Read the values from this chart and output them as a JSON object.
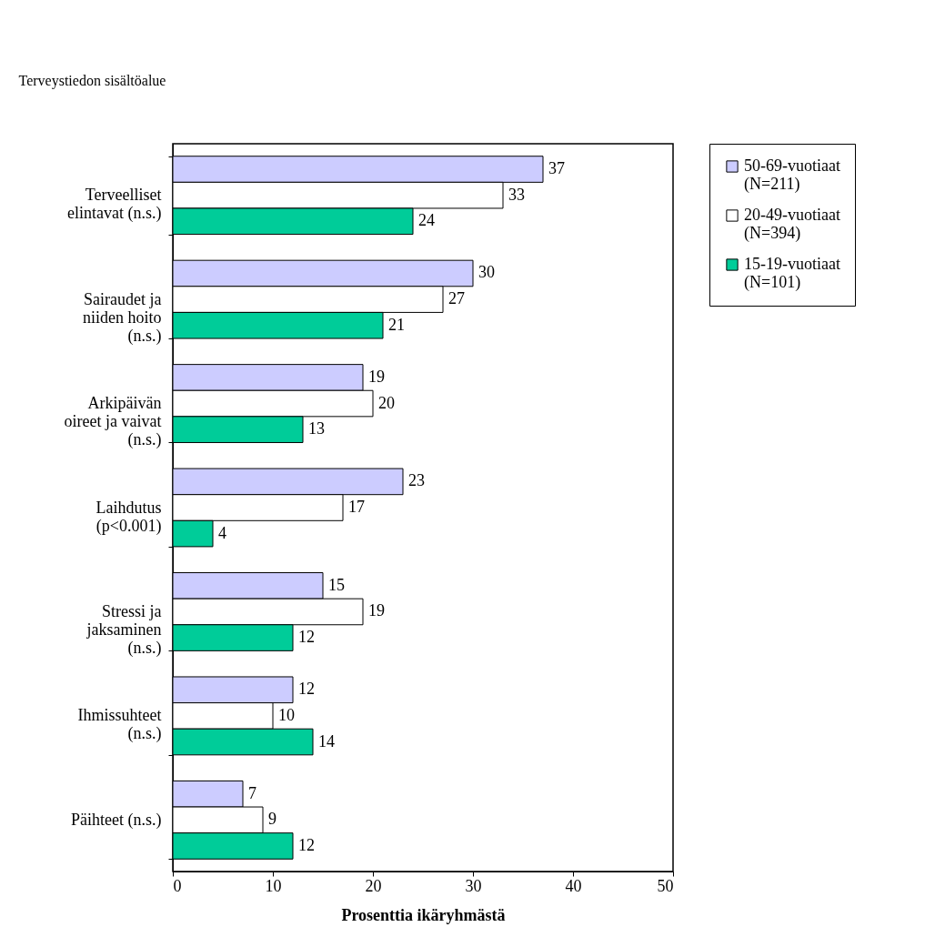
{
  "chart_data": {
    "type": "bar",
    "orientation": "horizontal",
    "ylabel": "Terveystiedon sisältöalue",
    "xlabel": "Prosenttia ikäryhmästä",
    "categories": [
      "Terveelliset elintavat (n.s.)",
      "Sairaudet ja niiden hoito (n.s.)",
      "Arkipäivän oireet ja vaivat (n.s.)",
      "Laihdutus (p<0.001)",
      "Stressi ja jaksaminen (n.s.)",
      "Ihmissuhteet (n.s.)",
      "Päihteet (n.s.)"
    ],
    "series": [
      {
        "name": "50-69-vuotiaat (N=211)",
        "color": "#ccccff",
        "values": [
          37,
          30,
          19,
          23,
          15,
          12,
          7
        ]
      },
      {
        "name": "20-49-vuotiaat (N=394)",
        "color": "#ffffff",
        "values": [
          33,
          27,
          20,
          17,
          19,
          10,
          9
        ]
      },
      {
        "name": "15-19-vuotiaat (N=101)",
        "color": "#00cc99",
        "values": [
          24,
          21,
          13,
          4,
          12,
          14,
          12
        ]
      }
    ],
    "xlim": [
      0,
      50
    ],
    "xticks": [
      0,
      10,
      20,
      30,
      40,
      50
    ],
    "grid": false,
    "legend": "right",
    "data_labels": true
  }
}
